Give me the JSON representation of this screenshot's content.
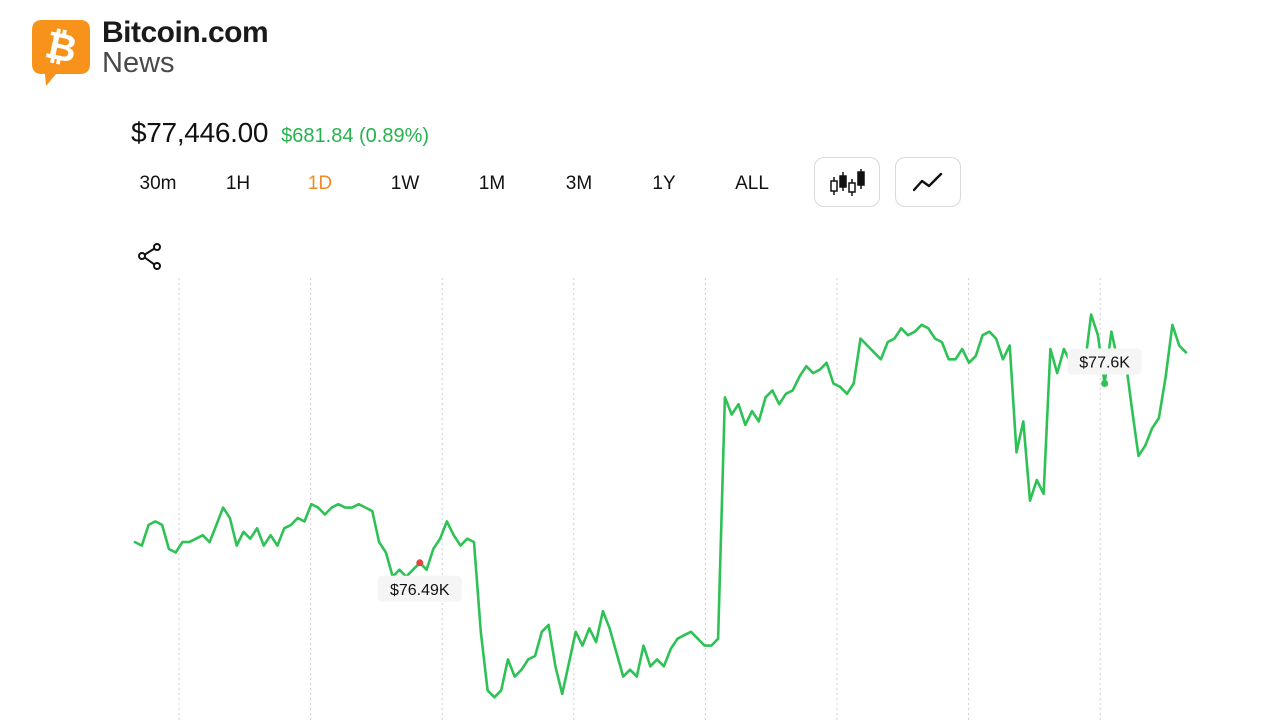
{
  "brand": {
    "name": "Bitcoin.com",
    "sub": "News",
    "badge_color": "#f7931a"
  },
  "price": {
    "value": "$77,446.00",
    "change": "$681.84 (0.89%)",
    "change_color": "#26b34d"
  },
  "ranges": {
    "items": [
      "30m",
      "1H",
      "1D",
      "1W",
      "1M",
      "3M",
      "1Y",
      "ALL"
    ],
    "active": "1D",
    "active_color": "#f08a24"
  },
  "view_buttons": {
    "candlestick": "candlestick-icon",
    "line": "line-chart-icon"
  },
  "share": {
    "icon": "share-icon"
  },
  "chart_data": {
    "type": "line",
    "title": "",
    "xlabel": "",
    "ylabel": "",
    "line_color": "#2ec256",
    "ylim": [
      76.43,
      77.7
    ],
    "grid": "vertical dotted",
    "annotations": [
      {
        "text": "$77.6K",
        "kind": "max",
        "index": 143,
        "color": "#2ec256"
      },
      {
        "text": "$76.49K",
        "kind": "min",
        "index": 42,
        "color": "#e0463a"
      }
    ],
    "series": [
      {
        "values": [
          76.94,
          76.93,
          76.99,
          77.0,
          76.99,
          76.92,
          76.91,
          76.94,
          76.94,
          76.95,
          76.96,
          76.94,
          76.99,
          77.04,
          77.01,
          76.93,
          76.97,
          76.95,
          76.98,
          76.93,
          76.96,
          76.93,
          76.98,
          76.99,
          77.01,
          77.0,
          77.05,
          77.04,
          77.02,
          77.04,
          77.05,
          77.04,
          77.04,
          77.05,
          77.04,
          77.03,
          76.94,
          76.91,
          76.84,
          76.86,
          76.84,
          76.86,
          76.88,
          76.86,
          76.92,
          76.95,
          77.0,
          76.96,
          76.93,
          76.95,
          76.94,
          76.68,
          76.51,
          76.49,
          76.51,
          76.6,
          76.55,
          76.57,
          76.6,
          76.61,
          76.68,
          76.7,
          76.58,
          76.5,
          76.59,
          76.68,
          76.64,
          76.69,
          76.65,
          76.74,
          76.69,
          76.62,
          76.55,
          76.57,
          76.55,
          76.64,
          76.58,
          76.6,
          76.58,
          76.63,
          76.66,
          76.67,
          76.68,
          76.66,
          76.64,
          76.64,
          76.66,
          77.36,
          77.31,
          77.34,
          77.28,
          77.32,
          77.29,
          77.36,
          77.38,
          77.34,
          77.37,
          77.38,
          77.42,
          77.45,
          77.43,
          77.44,
          77.46,
          77.4,
          77.39,
          77.37,
          77.4,
          77.53,
          77.51,
          77.49,
          77.47,
          77.52,
          77.53,
          77.56,
          77.54,
          77.55,
          77.57,
          77.56,
          77.53,
          77.52,
          77.47,
          77.47,
          77.5,
          77.46,
          77.48,
          77.54,
          77.55,
          77.53,
          77.47,
          77.51,
          77.2,
          77.29,
          77.06,
          77.12,
          77.08,
          77.5,
          77.43,
          77.5,
          77.46,
          77.47,
          77.44,
          77.6,
          77.54,
          77.4,
          77.55,
          77.46,
          77.48,
          77.33,
          77.19,
          77.22,
          77.27,
          77.3,
          77.42,
          77.57,
          77.51,
          77.49
        ]
      }
    ]
  }
}
